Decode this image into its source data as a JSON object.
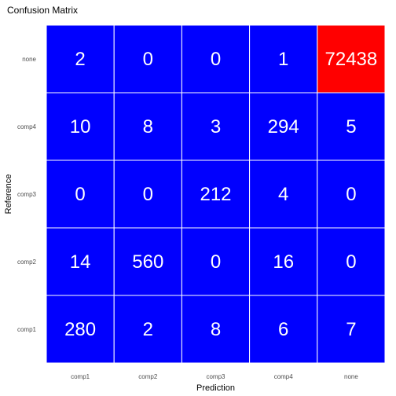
{
  "chart_data": {
    "type": "heatmap",
    "title": "Confusion Matrix",
    "xlabel": "Prediction",
    "ylabel": "Reference",
    "x_categories": [
      "comp1",
      "comp2",
      "comp3",
      "comp4",
      "none"
    ],
    "y_categories": [
      "comp1",
      "comp2",
      "comp3",
      "comp4",
      "none"
    ],
    "values": [
      [
        280,
        2,
        8,
        6,
        7
      ],
      [
        14,
        560,
        0,
        16,
        0
      ],
      [
        0,
        0,
        212,
        4,
        0
      ],
      [
        10,
        8,
        3,
        294,
        5
      ],
      [
        2,
        0,
        0,
        1,
        72438
      ]
    ],
    "color_low": "#0000ff",
    "color_high": "#ff0000",
    "grid_line_color": "#ffffff",
    "label_color": "#ffffff",
    "legend": "none"
  }
}
